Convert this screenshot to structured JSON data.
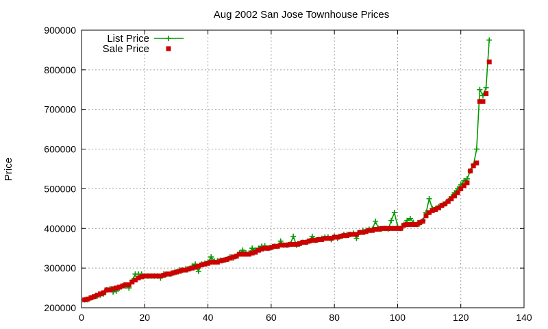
{
  "chart_data": {
    "type": "line",
    "title": "Aug 2002 San Jose Townhouse Prices",
    "xlabel": "",
    "ylabel": "Price",
    "xlim": [
      0,
      140
    ],
    "ylim": [
      200000,
      900000
    ],
    "xticks": [
      0,
      20,
      40,
      60,
      80,
      100,
      120,
      140
    ],
    "yticks": [
      200000,
      300000,
      400000,
      500000,
      600000,
      700000,
      800000,
      900000
    ],
    "grid": true,
    "legend_position": "top-left",
    "series": [
      {
        "name": "List Price",
        "style": "line with plus markers",
        "color": "#009900",
        "values": [
          220000,
          220000,
          225000,
          228000,
          230000,
          232000,
          235000,
          245000,
          248000,
          240000,
          242000,
          250000,
          255000,
          255000,
          250000,
          268000,
          285000,
          285000,
          285000,
          280000,
          280000,
          280000,
          280000,
          280000,
          275000,
          285000,
          285000,
          285000,
          288000,
          290000,
          295000,
          295000,
          298000,
          298000,
          305000,
          310000,
          292000,
          310000,
          312000,
          315000,
          328000,
          318000,
          318000,
          320000,
          320000,
          322000,
          328000,
          325000,
          330000,
          338000,
          345000,
          338000,
          338000,
          350000,
          345000,
          350000,
          355000,
          356000,
          350000,
          352000,
          355000,
          355000,
          368000,
          358000,
          358000,
          360000,
          380000,
          358000,
          360000,
          365000,
          365000,
          368000,
          380000,
          370000,
          372000,
          375000,
          378000,
          378000,
          372000,
          380000,
          375000,
          380000,
          385000,
          385000,
          385000,
          388000,
          375000,
          390000,
          395000,
          395000,
          398000,
          398000,
          418000,
          400000,
          398000,
          400000,
          398000,
          420000,
          440000,
          405000,
          400000,
          410000,
          420000,
          425000,
          415000,
          410000,
          412000,
          420000,
          440000,
          475000,
          450000,
          450000,
          455000,
          458000,
          462000,
          470000,
          480000,
          490000,
          500000,
          510000,
          520000,
          525000,
          545000,
          560000,
          600000,
          750000,
          735000,
          755000,
          875000
        ]
      },
      {
        "name": "Sale Price",
        "style": "square markers",
        "color": "#cc0000",
        "values": [
          220000,
          222000,
          225000,
          228000,
          232000,
          235000,
          238000,
          245000,
          245000,
          248000,
          250000,
          252000,
          255000,
          258000,
          258000,
          265000,
          270000,
          275000,
          278000,
          280000,
          280000,
          280000,
          280000,
          280000,
          280000,
          282000,
          285000,
          285000,
          288000,
          290000,
          292000,
          295000,
          295000,
          298000,
          300000,
          302000,
          305000,
          308000,
          310000,
          312000,
          315000,
          315000,
          315000,
          318000,
          320000,
          322000,
          325000,
          328000,
          330000,
          335000,
          335000,
          335000,
          335000,
          338000,
          340000,
          345000,
          348000,
          350000,
          350000,
          352000,
          355000,
          355000,
          358000,
          358000,
          358000,
          360000,
          360000,
          360000,
          362000,
          365000,
          365000,
          368000,
          370000,
          370000,
          372000,
          372000,
          375000,
          375000,
          375000,
          378000,
          378000,
          380000,
          382000,
          382000,
          385000,
          385000,
          385000,
          390000,
          390000,
          392000,
          395000,
          395000,
          398000,
          398000,
          400000,
          400000,
          400000,
          400000,
          400000,
          400000,
          400000,
          408000,
          410000,
          410000,
          410000,
          410000,
          415000,
          418000,
          432000,
          440000,
          445000,
          448000,
          452000,
          458000,
          462000,
          468000,
          475000,
          482000,
          490000,
          500000,
          508000,
          515000,
          545000,
          558000,
          565000,
          720000,
          720000,
          740000,
          820000
        ]
      }
    ]
  }
}
